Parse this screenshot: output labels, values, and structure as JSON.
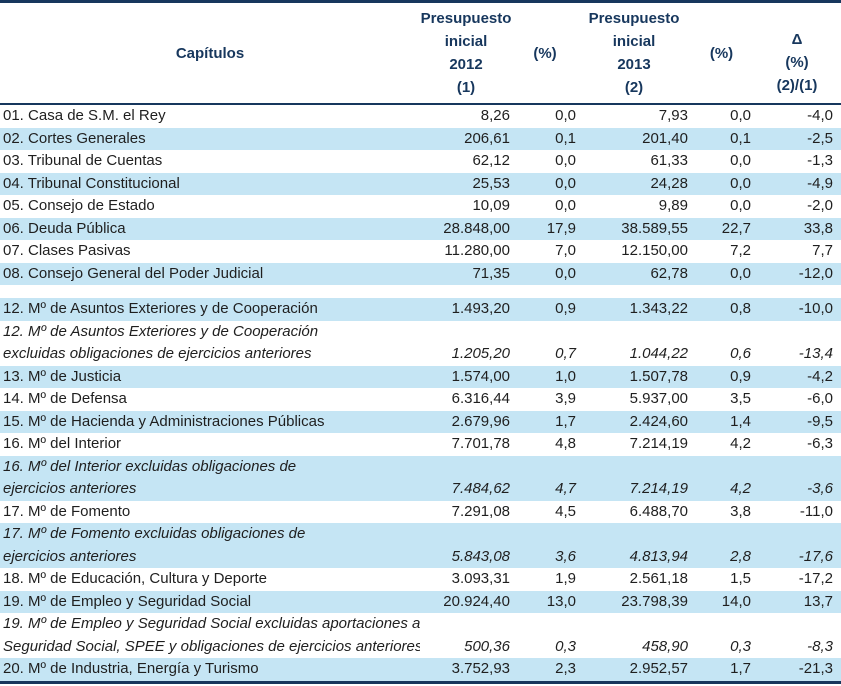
{
  "colors": {
    "band": "#c5e5f4",
    "border": "#17375d",
    "header_text": "#17375d",
    "body_text": "#1f1f1f"
  },
  "table": {
    "columns": {
      "capitulos": "Capítulos",
      "presupuesto_2012_lines": [
        "Presupuesto",
        "inicial",
        "2012",
        "(1)"
      ],
      "pct_1": "(%)",
      "presupuesto_2013_lines": [
        "Presupuesto",
        "inicial",
        "2013",
        "(2)"
      ],
      "pct_2": "(%)",
      "delta_lines": [
        "Δ",
        "(%)",
        "(2)/(1)"
      ]
    },
    "rows": [
      {
        "type": "data",
        "shaded": false,
        "italic": false,
        "label_lines": [
          "01. Casa de S.M. el Rey"
        ],
        "values": [
          "8,26",
          "0,0",
          "7,93",
          "0,0",
          "-4,0"
        ]
      },
      {
        "type": "data",
        "shaded": true,
        "italic": false,
        "label_lines": [
          "02. Cortes Generales"
        ],
        "values": [
          "206,61",
          "0,1",
          "201,40",
          "0,1",
          "-2,5"
        ]
      },
      {
        "type": "data",
        "shaded": false,
        "italic": false,
        "label_lines": [
          "03. Tribunal de Cuentas"
        ],
        "values": [
          "62,12",
          "0,0",
          "61,33",
          "0,0",
          "-1,3"
        ]
      },
      {
        "type": "data",
        "shaded": true,
        "italic": false,
        "label_lines": [
          "04. Tribunal Constitucional"
        ],
        "values": [
          "25,53",
          "0,0",
          "24,28",
          "0,0",
          "-4,9"
        ]
      },
      {
        "type": "data",
        "shaded": false,
        "italic": false,
        "label_lines": [
          "05. Consejo de Estado"
        ],
        "values": [
          "10,09",
          "0,0",
          "9,89",
          "0,0",
          "-2,0"
        ]
      },
      {
        "type": "data",
        "shaded": true,
        "italic": false,
        "label_lines": [
          "06. Deuda Pública"
        ],
        "values": [
          "28.848,00",
          "17,9",
          "38.589,55",
          "22,7",
          "33,8"
        ]
      },
      {
        "type": "data",
        "shaded": false,
        "italic": false,
        "label_lines": [
          "07. Clases Pasivas"
        ],
        "values": [
          "11.280,00",
          "7,0",
          "12.150,00",
          "7,2",
          "7,7"
        ]
      },
      {
        "type": "data",
        "shaded": true,
        "italic": false,
        "label_lines": [
          "08. Consejo General del Poder Judicial"
        ],
        "values": [
          "71,35",
          "0,0",
          "62,78",
          "0,0",
          "-12,0"
        ]
      },
      {
        "type": "separator"
      },
      {
        "type": "data",
        "shaded": true,
        "italic": false,
        "label_lines": [
          "12. Mº de Asuntos Exteriores y de Cooperación"
        ],
        "values": [
          "1.493,20",
          "0,9",
          "1.343,22",
          "0,8",
          "-10,0"
        ]
      },
      {
        "type": "data",
        "shaded": false,
        "italic": true,
        "label_lines": [
          "12. Mº de Asuntos Exteriores y de Cooperación",
          "excluidas obligaciones de ejercicios anteriores"
        ],
        "values": [
          "1.205,20",
          "0,7",
          "1.044,22",
          "0,6",
          "-13,4"
        ]
      },
      {
        "type": "data",
        "shaded": true,
        "italic": false,
        "label_lines": [
          "13. Mº de Justicia"
        ],
        "values": [
          "1.574,00",
          "1,0",
          "1.507,78",
          "0,9",
          "-4,2"
        ]
      },
      {
        "type": "data",
        "shaded": false,
        "italic": false,
        "label_lines": [
          "14. Mº de Defensa"
        ],
        "values": [
          "6.316,44",
          "3,9",
          "5.937,00",
          "3,5",
          "-6,0"
        ]
      },
      {
        "type": "data",
        "shaded": true,
        "italic": false,
        "label_lines": [
          "15. Mº de Hacienda y Administraciones Públicas"
        ],
        "values": [
          "2.679,96",
          "1,7",
          "2.424,60",
          "1,4",
          "-9,5"
        ]
      },
      {
        "type": "data",
        "shaded": false,
        "italic": false,
        "label_lines": [
          "16. Mº del Interior"
        ],
        "values": [
          "7.701,78",
          "4,8",
          "7.214,19",
          "4,2",
          "-6,3"
        ]
      },
      {
        "type": "data",
        "shaded": true,
        "italic": true,
        "label_lines": [
          "16. Mº del Interior excluidas obligaciones de",
          "ejercicios anteriores"
        ],
        "values": [
          "7.484,62",
          "4,7",
          "7.214,19",
          "4,2",
          "-3,6"
        ]
      },
      {
        "type": "data",
        "shaded": false,
        "italic": false,
        "label_lines": [
          "17. Mº de Fomento"
        ],
        "values": [
          "7.291,08",
          "4,5",
          "6.488,70",
          "3,8",
          "-11,0"
        ]
      },
      {
        "type": "data",
        "shaded": true,
        "italic": true,
        "label_lines": [
          "17. Mº de Fomento excluidas obligaciones de",
          "ejercicios anteriores"
        ],
        "values": [
          "5.843,08",
          "3,6",
          "4.813,94",
          "2,8",
          "-17,6"
        ]
      },
      {
        "type": "data",
        "shaded": false,
        "italic": false,
        "label_lines": [
          "18. Mº de Educación, Cultura y Deporte"
        ],
        "values": [
          "3.093,31",
          "1,9",
          "2.561,18",
          "1,5",
          "-17,2"
        ]
      },
      {
        "type": "data",
        "shaded": true,
        "italic": false,
        "label_lines": [
          "19. Mº de Empleo y Seguridad Social"
        ],
        "values": [
          "20.924,40",
          "13,0",
          "23.798,39",
          "14,0",
          "13,7"
        ]
      },
      {
        "type": "data",
        "shaded": false,
        "italic": true,
        "label_lines": [
          "19. Mº de Empleo y Seguridad Social excluidas aportaciones a",
          "Seguridad Social, SPEE y obligaciones de ejercicios anteriores"
        ],
        "values": [
          "500,36",
          "0,3",
          "458,90",
          "0,3",
          "-8,3"
        ]
      },
      {
        "type": "data",
        "shaded": true,
        "italic": false,
        "label_lines": [
          "20. Mº de Industria, Energía y Turismo"
        ],
        "values": [
          "3.752,93",
          "2,3",
          "2.952,57",
          "1,7",
          "-21,3"
        ]
      }
    ]
  }
}
